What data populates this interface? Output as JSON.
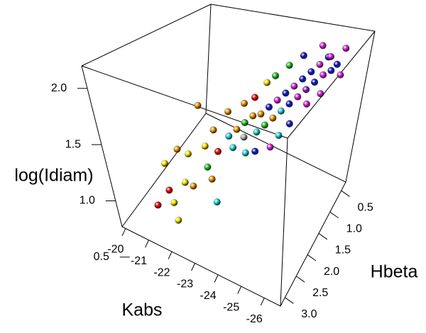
{
  "chart_data": {
    "type": "scatter3d",
    "xlabel": "Kabs",
    "ylabel": "Hbeta",
    "zlabel": "log(Idiam)",
    "xlim": [
      -19.85,
      -26.7
    ],
    "ylim": [
      3.2,
      0.3
    ],
    "zlim": [
      0.77,
      2.2
    ],
    "xticks": [
      -20,
      -21,
      -22,
      -23,
      -24,
      -25,
      -26
    ],
    "yticks": [
      0.5,
      {
        "value": 1,
        "label": "1.0"
      },
      1.5,
      {
        "value": 2,
        "label": "2.0"
      },
      2.5,
      {
        "value": 3,
        "label": "3.0"
      }
    ],
    "zticks": [
      0.5,
      {
        "value": 1,
        "label": "1.0"
      },
      1.5,
      {
        "value": 2,
        "label": "2.0"
      }
    ],
    "x": [
      -20.9,
      -21.2,
      -21.0,
      -21.5,
      -21.3,
      -21.8,
      -21.6,
      -22.0,
      -21.9,
      -22.2,
      -22.4,
      -22.3,
      -22.6,
      -22.8,
      -22.7,
      -23.0,
      -23.1,
      -23.2,
      -23.3,
      -23.4,
      -23.5,
      -23.6,
      -23.2,
      -23.7,
      -23.8,
      -23.9,
      -24.0,
      -24.1,
      -24.2,
      -24.3,
      -24.4,
      -24.5,
      -24.6,
      -24.7,
      -24.8,
      -24.9,
      -25.0,
      -25.1,
      -25.2,
      -25.3,
      -25.4,
      -25.6,
      -25.8,
      -25.5,
      -24.0,
      -24.5,
      -22.5,
      -23.0,
      -21.4,
      -24.8,
      -25.2,
      -24.3,
      -23.6,
      -25.7,
      -24.9,
      -23.9,
      -22.9,
      -24.4,
      -25.9,
      -23.4
    ],
    "y": [
      2.7,
      2.5,
      2.4,
      2.6,
      2.2,
      2.4,
      2.1,
      2.3,
      2.8,
      2.0,
      2.1,
      1.8,
      1.9,
      1.7,
      2.2,
      1.6,
      1.8,
      1.5,
      1.6,
      1.4,
      1.7,
      1.3,
      1.2,
      1.5,
      1.2,
      1.4,
      1.1,
      1.3,
      1.0,
      1.2,
      0.9,
      1.1,
      0.8,
      1.0,
      0.7,
      0.9,
      0.6,
      0.8,
      0.5,
      0.7,
      0.6,
      0.5,
      0.45,
      0.9,
      0.8,
      1.4,
      1.5,
      2.3,
      1.6,
      1.3,
      1.1,
      0.6,
      0.9,
      0.8,
      0.5,
      1.7,
      1.3,
      1.6,
      0.6,
      1.0
    ],
    "z": [
      0.9,
      1.0,
      1.2,
      0.95,
      1.3,
      1.1,
      1.25,
      1.05,
      0.9,
      1.35,
      1.2,
      1.45,
      1.3,
      1.4,
      1.15,
      1.45,
      1.35,
      1.5,
      1.4,
      1.55,
      1.3,
      1.55,
      1.65,
      1.45,
      1.6,
      1.5,
      1.65,
      1.55,
      1.7,
      1.6,
      1.75,
      1.65,
      1.8,
      1.7,
      1.85,
      1.75,
      1.9,
      1.8,
      1.95,
      1.85,
      2.0,
      1.9,
      2.05,
      1.75,
      1.9,
      1.45,
      1.55,
      1.0,
      1.55,
      1.55,
      1.7,
      1.95,
      1.8,
      1.95,
      2.05,
      1.35,
      1.6,
      1.4,
      1.85,
      1.75
    ],
    "colors": [
      "#e00000",
      "#e00000",
      "#f0e000",
      "#f0e000",
      "#e09000",
      "#f0e000",
      "#f0e000",
      "#e09000",
      "#f0e000",
      "#f0e000",
      "#20c020",
      "#e09000",
      "#e00000",
      "#20d0d0",
      "#e09000",
      "#e09000",
      "#20d0d0",
      "#20c020",
      "#a0a0a0",
      "#e09000",
      "#20d0d0",
      "#e09000",
      "#e00000",
      "#20d0d0",
      "#1010c0",
      "#20c020",
      "#d020d0",
      "#e09000",
      "#1010c0",
      "#20d0d0",
      "#d020d0",
      "#1010c0",
      "#1010c0",
      "#d020d0",
      "#1010c0",
      "#8020c0",
      "#d020d0",
      "#1010c0",
      "#1010c0",
      "#d020d0",
      "#d020d0",
      "#1010c0",
      "#d020d0",
      "#d020d0",
      "#20c020",
      "#20d0d0",
      "#e09000",
      "#20d0d0",
      "#e09000",
      "#1010c0",
      "#d020d0",
      "#1010c0",
      "#20c020",
      "#1010c0",
      "#d020d0",
      "#1010c0",
      "#e09000",
      "#d020d0",
      "#d020d0",
      "#f0e000"
    ]
  }
}
